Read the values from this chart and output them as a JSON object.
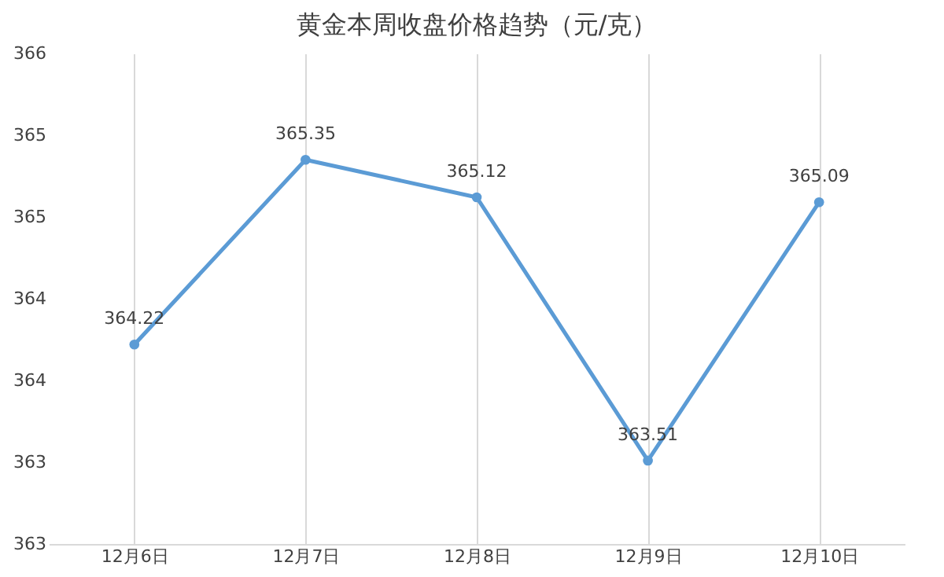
{
  "chart_data": {
    "type": "line",
    "title": "黄金本周收盘价格趋势（元/克）",
    "categories": [
      "12月6日",
      "12月7日",
      "12月8日",
      "12月9日",
      "12月10日"
    ],
    "series": [
      {
        "color": "#5b9bd5",
        "values": [
          364.22,
          365.35,
          365.12,
          363.51,
          365.09
        ]
      }
    ],
    "ylim": [
      363,
      366
    ],
    "yticks": [
      363,
      {
        "value": 363.5,
        "label": "363"
      },
      364,
      {
        "value": 364.5,
        "label": "364"
      },
      365,
      {
        "value": 365.5,
        "label": "365"
      },
      366
    ],
    "grid": "x",
    "marker": "circle",
    "line_style": "solid",
    "data_labels": true
  }
}
